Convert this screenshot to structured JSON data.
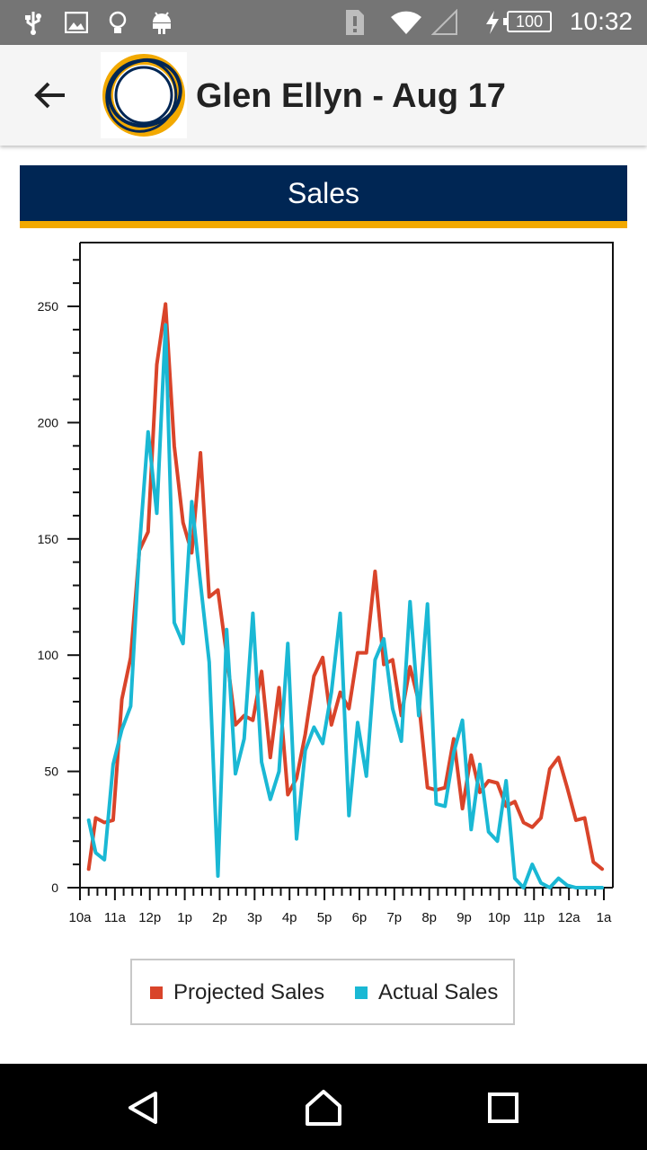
{
  "status_bar": {
    "time": "10:32",
    "battery": "100",
    "icons": [
      "usb-icon",
      "image-icon",
      "lightbulb-icon",
      "android-icon",
      "sim-alert-icon",
      "wifi-icon",
      "signal-icon",
      "charging-icon",
      "battery-icon"
    ]
  },
  "app_bar": {
    "title": "Glen Ellyn - Aug 17",
    "back_icon": "arrow-back-icon",
    "logo_icon": "brand-logo-icon"
  },
  "banner": {
    "title": "Sales"
  },
  "colors": {
    "navy": "#002654",
    "gold": "#f2a900",
    "projected": "#d9442a",
    "actual": "#1ab8d4"
  },
  "chart_data": {
    "type": "line",
    "title": "",
    "xlabel": "",
    "ylabel": "",
    "ylim": [
      0,
      275
    ],
    "yticks": [
      0,
      50,
      100,
      150,
      200,
      250
    ],
    "x_tick_labels": [
      "10a",
      "11a",
      "12p",
      "1p",
      "2p",
      "3p",
      "4p",
      "5p",
      "6p",
      "7p",
      "8p",
      "9p",
      "10p",
      "11p",
      "12a",
      "1a"
    ],
    "x_range": [
      0,
      15
    ],
    "grid": false,
    "legend_position": "bottom",
    "series": [
      {
        "name": "Projected Sales",
        "color": "#d9442a",
        "x": [
          0.25,
          0.45,
          0.7,
          0.95,
          1.2,
          1.45,
          1.7,
          1.95,
          2.2,
          2.45,
          2.7,
          2.95,
          3.2,
          3.45,
          3.7,
          3.95,
          4.2,
          4.45,
          4.7,
          4.95,
          5.2,
          5.45,
          5.7,
          5.95,
          6.2,
          6.45,
          6.7,
          6.95,
          7.2,
          7.45,
          7.7,
          7.95,
          8.2,
          8.45,
          8.7,
          8.95,
          9.2,
          9.45,
          9.7,
          9.95,
          10.2,
          10.45,
          10.7,
          10.95,
          11.2,
          11.45,
          11.7,
          11.95,
          12.2,
          12.45,
          12.7,
          12.95,
          13.2,
          13.45,
          13.7,
          13.95,
          14.2,
          14.45,
          14.7,
          14.95
        ],
        "values": [
          8,
          30,
          28,
          29,
          81,
          99,
          145,
          153,
          225,
          251,
          190,
          157,
          144,
          187,
          125,
          128,
          100,
          70,
          74,
          72,
          93,
          56,
          86,
          40,
          47,
          66,
          91,
          99,
          70,
          84,
          77,
          101,
          101,
          136,
          96,
          98,
          74,
          95,
          80,
          43,
          42,
          43,
          64,
          34,
          57,
          41,
          46,
          45,
          35,
          37,
          28,
          26,
          30,
          51,
          56,
          43,
          29,
          30,
          11,
          8
        ]
      },
      {
        "name": "Actual Sales",
        "color": "#1ab8d4",
        "x": [
          0.25,
          0.45,
          0.7,
          0.95,
          1.2,
          1.45,
          1.7,
          1.95,
          2.2,
          2.45,
          2.7,
          2.95,
          3.2,
          3.45,
          3.7,
          3.95,
          4.2,
          4.45,
          4.7,
          4.95,
          5.2,
          5.45,
          5.7,
          5.95,
          6.2,
          6.45,
          6.7,
          6.95,
          7.2,
          7.45,
          7.7,
          7.95,
          8.2,
          8.45,
          8.7,
          8.95,
          9.2,
          9.45,
          9.7,
          9.95,
          10.2,
          10.45,
          10.7,
          10.95,
          11.2,
          11.45,
          11.7,
          11.95,
          12.2,
          12.45,
          12.7,
          12.95,
          13.2,
          13.45,
          13.7,
          13.95,
          14.2,
          14.45,
          14.7,
          14.95
        ],
        "values": [
          29,
          15,
          12,
          53,
          68,
          78,
          146,
          196,
          161,
          242,
          114,
          105,
          166,
          131,
          97,
          5,
          111,
          49,
          64,
          118,
          54,
          38,
          50,
          105,
          21,
          59,
          69,
          62,
          84,
          118,
          31,
          71,
          48,
          98,
          107,
          77,
          63,
          123,
          74,
          122,
          36,
          35,
          58,
          72,
          25,
          53,
          24,
          20,
          46,
          4,
          0,
          10,
          2,
          0,
          4,
          1,
          0,
          0,
          0,
          0
        ]
      }
    ]
  },
  "legend": {
    "projected_label": "Projected Sales",
    "actual_label": "Actual Sales"
  },
  "nav_bar": {
    "back_icon": "nav-back-icon",
    "home_icon": "nav-home-icon",
    "recents_icon": "nav-recents-icon"
  }
}
